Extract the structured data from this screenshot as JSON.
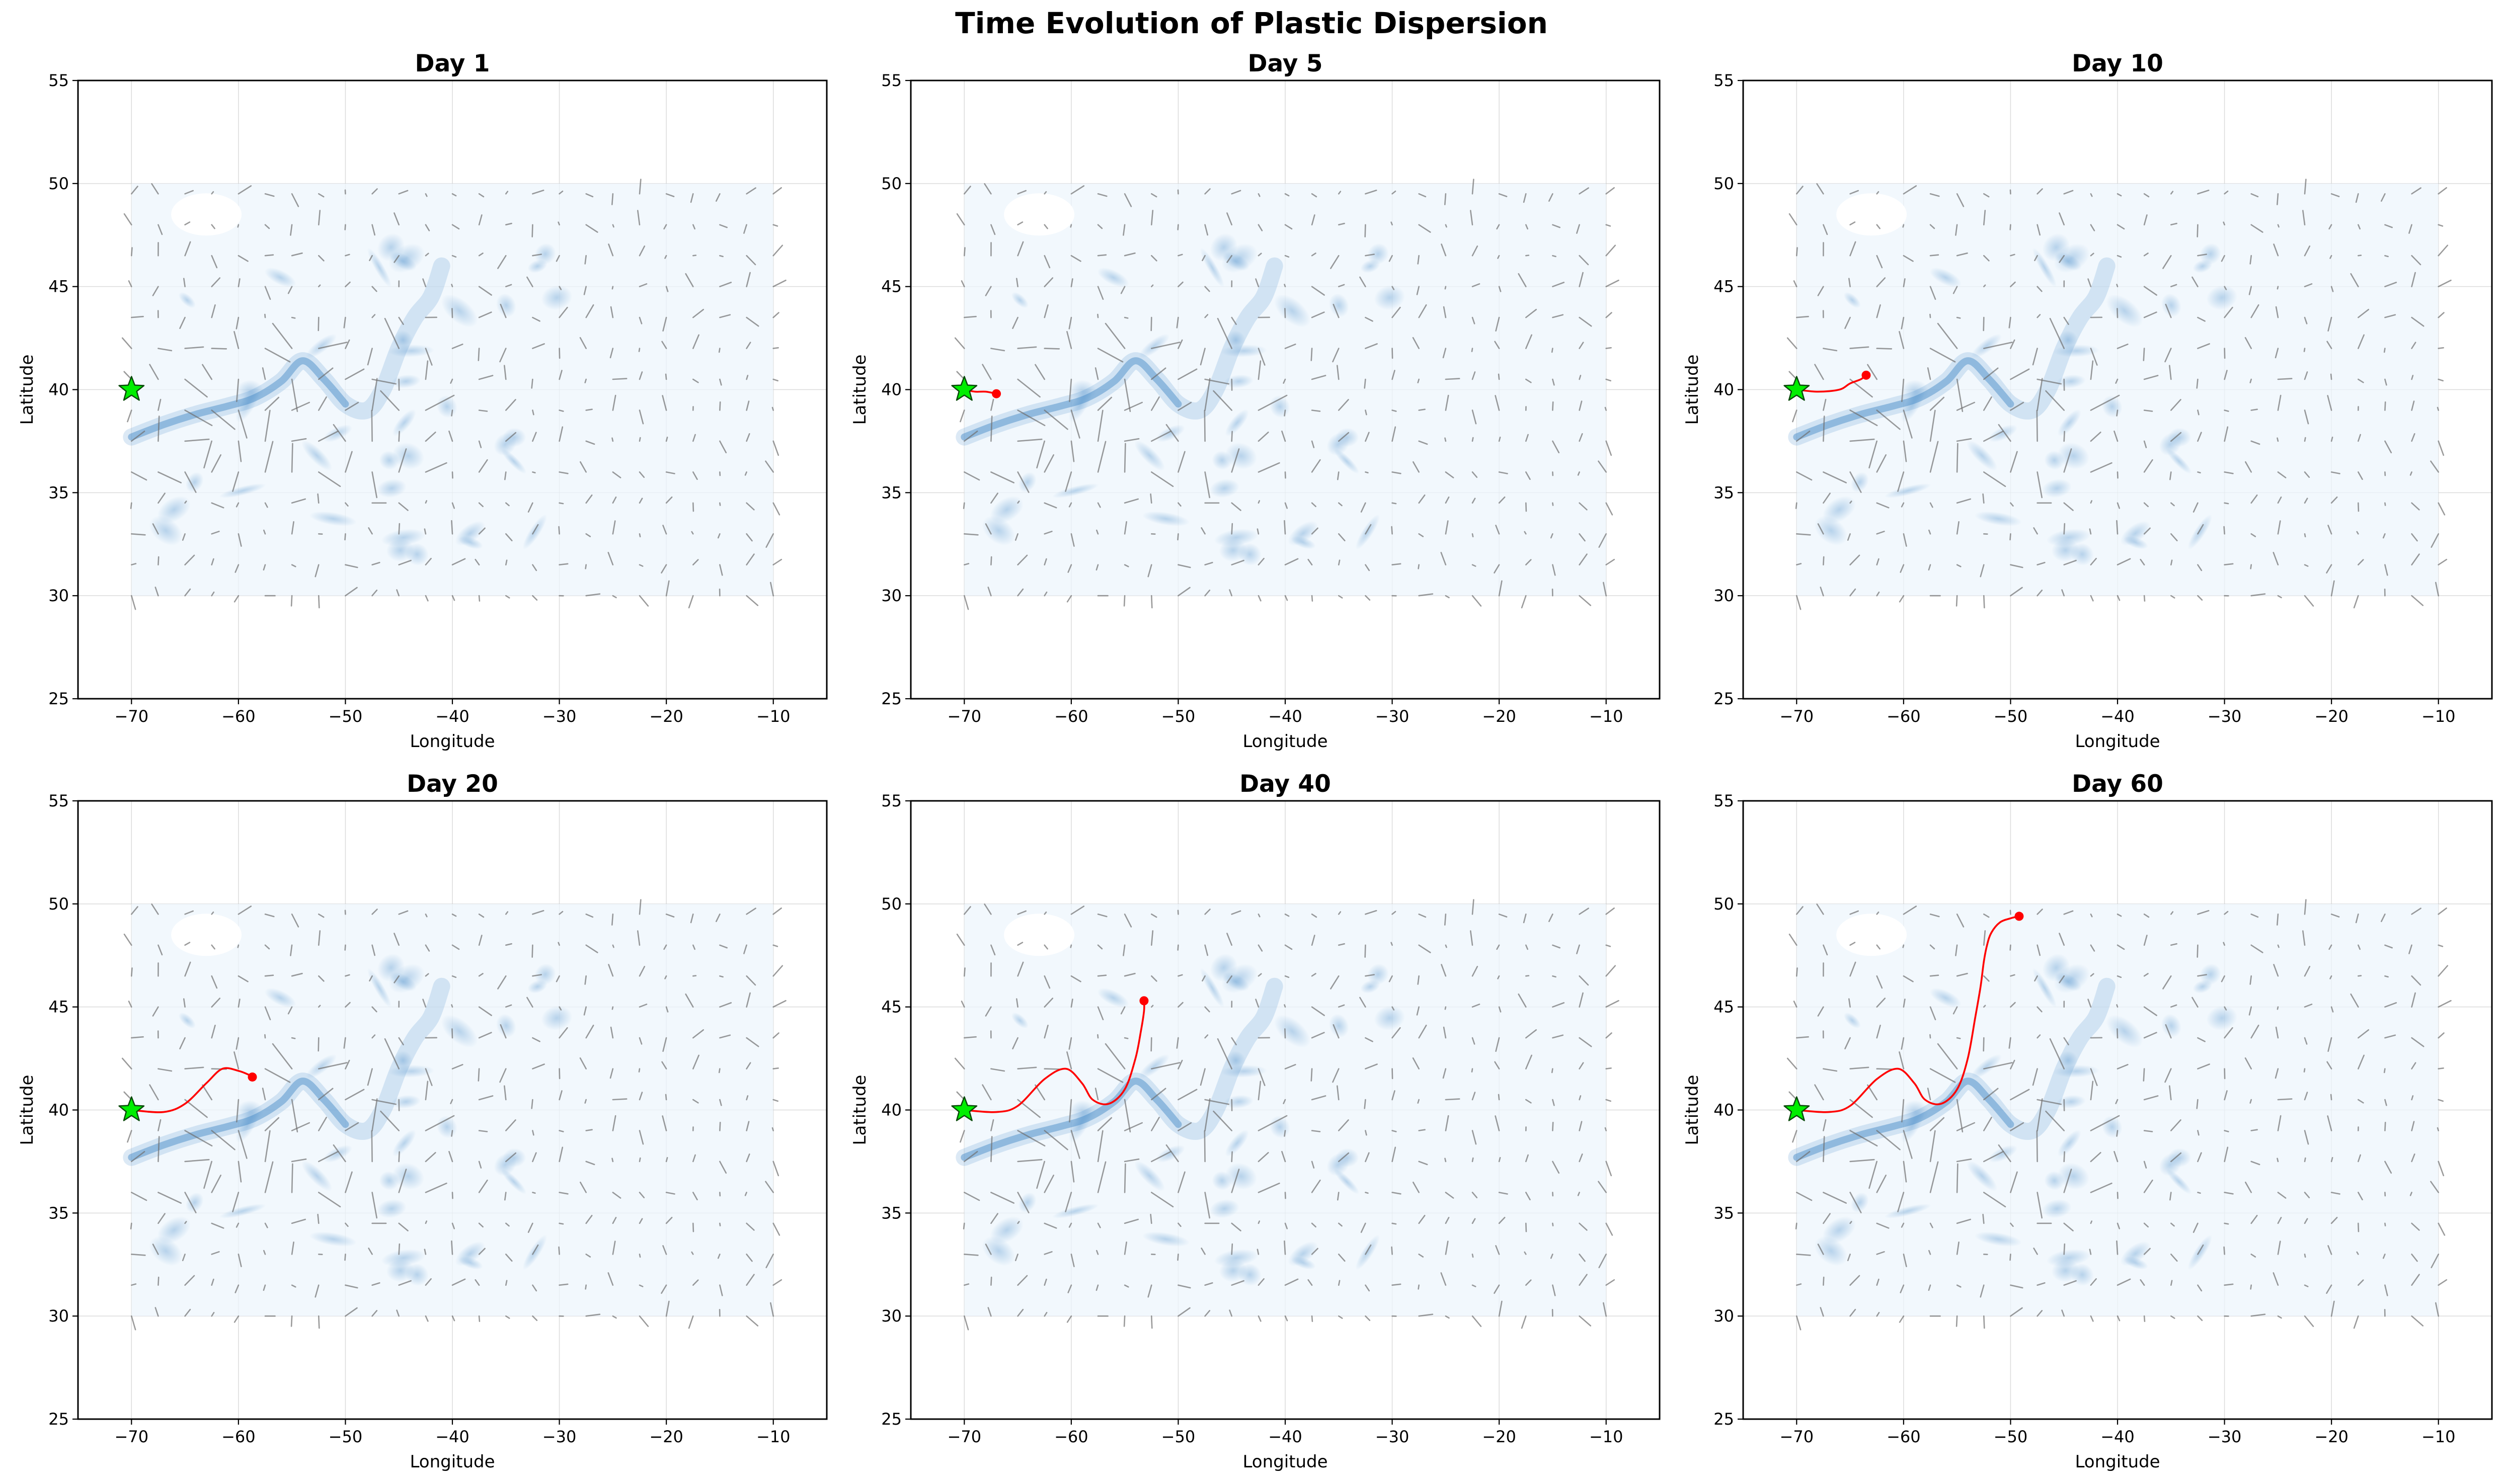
{
  "figure": {
    "title": "Time Evolution of Plastic Dispersion"
  },
  "colors": {
    "trajectory": "#ff0000",
    "release_marker": "#00ee00",
    "release_marker_edge": "#0a4a0a",
    "current_field": "#3d85c6",
    "quiver": "#6f6f6f",
    "grid": "#b0b0b0"
  },
  "chart_data": [
    {
      "type": "line",
      "title": "Day 1",
      "xlabel": "Longitude",
      "ylabel": "Latitude",
      "xlim": [
        -75,
        -5
      ],
      "ylim": [
        25,
        55
      ],
      "xticks": [
        -70,
        -60,
        -50,
        -40,
        -30,
        -20,
        -10
      ],
      "yticks": [
        25,
        30,
        35,
        40,
        45,
        50,
        55
      ],
      "grid": true,
      "release_point": {
        "x": -70,
        "y": 40
      },
      "series": [
        {
          "x": [
            -70
          ],
          "y": [
            40
          ]
        }
      ]
    },
    {
      "type": "line",
      "title": "Day 5",
      "xlabel": "Longitude",
      "ylabel": "Latitude",
      "xlim": [
        -75,
        -5
      ],
      "ylim": [
        25,
        55
      ],
      "xticks": [
        -70,
        -60,
        -50,
        -40,
        -30,
        -20,
        -10
      ],
      "yticks": [
        25,
        30,
        35,
        40,
        45,
        50,
        55
      ],
      "grid": true,
      "release_point": {
        "x": -70,
        "y": 40
      },
      "series": [
        {
          "x": [
            -70,
            -69,
            -68,
            -67
          ],
          "y": [
            40,
            39.9,
            39.9,
            39.8
          ]
        }
      ]
    },
    {
      "type": "line",
      "title": "Day 10",
      "xlabel": "Longitude",
      "ylabel": "Latitude",
      "xlim": [
        -75,
        -5
      ],
      "ylim": [
        25,
        55
      ],
      "xticks": [
        -70,
        -60,
        -50,
        -40,
        -30,
        -20,
        -10
      ],
      "yticks": [
        25,
        30,
        35,
        40,
        45,
        50,
        55
      ],
      "grid": true,
      "release_point": {
        "x": -70,
        "y": 40
      },
      "series": [
        {
          "x": [
            -70,
            -68,
            -66,
            -65,
            -64,
            -63.5
          ],
          "y": [
            40,
            39.9,
            40,
            40.3,
            40.5,
            40.7
          ]
        }
      ]
    },
    {
      "type": "line",
      "title": "Day 20",
      "xlabel": "Longitude",
      "ylabel": "Latitude",
      "xlim": [
        -75,
        -5
      ],
      "ylim": [
        25,
        55
      ],
      "xticks": [
        -70,
        -60,
        -50,
        -40,
        -30,
        -20,
        -10
      ],
      "yticks": [
        25,
        30,
        35,
        40,
        45,
        50,
        55
      ],
      "grid": true,
      "release_point": {
        "x": -70,
        "y": 40
      },
      "series": [
        {
          "x": [
            -70,
            -67,
            -65,
            -63,
            -61.5,
            -60,
            -59,
            -58.7
          ],
          "y": [
            40,
            39.9,
            40.3,
            41.3,
            42,
            41.9,
            41.7,
            41.6
          ]
        }
      ]
    },
    {
      "type": "line",
      "title": "Day 40",
      "xlabel": "Longitude",
      "ylabel": "Latitude",
      "xlim": [
        -75,
        -5
      ],
      "ylim": [
        25,
        55
      ],
      "xticks": [
        -70,
        -60,
        -50,
        -40,
        -30,
        -20,
        -10
      ],
      "yticks": [
        25,
        30,
        35,
        40,
        45,
        50,
        55
      ],
      "grid": true,
      "release_point": {
        "x": -70,
        "y": 40
      },
      "series": [
        {
          "x": [
            -70,
            -67,
            -65,
            -62.5,
            -60.5,
            -59,
            -58,
            -56.5,
            -55,
            -54,
            -53.5,
            -53.2,
            -53.2
          ],
          "y": [
            40,
            39.9,
            40.2,
            41.5,
            42,
            41.3,
            40.5,
            40.3,
            41,
            42.5,
            43.8,
            44.8,
            45.3
          ]
        }
      ]
    },
    {
      "type": "line",
      "title": "Day 60",
      "xlabel": "Longitude",
      "ylabel": "Latitude",
      "xlim": [
        -75,
        -5
      ],
      "ylim": [
        25,
        55
      ],
      "xticks": [
        -70,
        -60,
        -50,
        -40,
        -30,
        -20,
        -10
      ],
      "yticks": [
        25,
        30,
        35,
        40,
        45,
        50,
        55
      ],
      "grid": true,
      "release_point": {
        "x": -70,
        "y": 40
      },
      "series": [
        {
          "x": [
            -70,
            -67,
            -65,
            -62.5,
            -60.5,
            -59,
            -58,
            -56.5,
            -55,
            -54,
            -53.3,
            -52.8,
            -52.5,
            -52.2,
            -51.8,
            -51,
            -50,
            -49.2
          ],
          "y": [
            40,
            39.9,
            40.2,
            41.5,
            42,
            41.3,
            40.5,
            40.3,
            41,
            42.5,
            44.5,
            46,
            47.2,
            48,
            48.6,
            49.1,
            49.3,
            49.4
          ]
        }
      ]
    }
  ]
}
